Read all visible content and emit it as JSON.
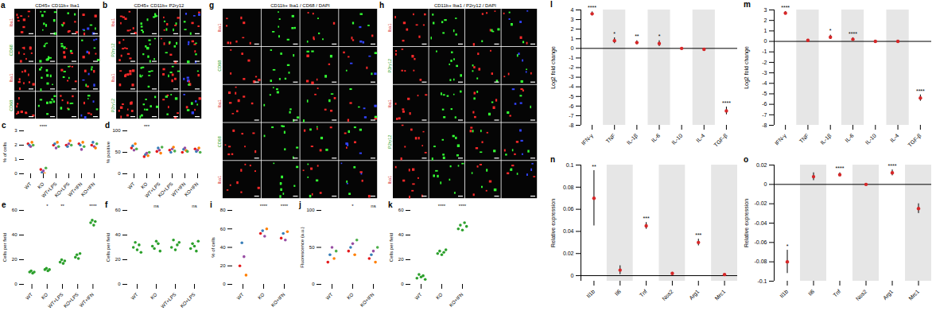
{
  "images": [
    {
      "letter": "a",
      "title": "CD45+ CD11b+ Iba1",
      "row_labels": [
        "Iba1",
        "CD68",
        "Iba1",
        "CD68"
      ]
    },
    {
      "letter": "b",
      "title": "CD45+ CD11b+ P2ry12",
      "row_labels": [
        "Iba1",
        "P2ry12",
        "Iba1",
        "P2ry12"
      ]
    },
    {
      "letter": "g",
      "title": "CD11b+ Iba1 / CD68 / DAPI",
      "row_labels": [
        "Iba1",
        "CD68",
        "Iba1",
        "CD68",
        "Iba1"
      ]
    },
    {
      "letter": "h",
      "title": "CD11b+ Iba1 / P2ry12 / DAPI",
      "row_labels": [
        "Iba1",
        "P2ry12",
        "Iba1",
        "P2ry12",
        "Iba1"
      ]
    }
  ],
  "chart_data": [
    {
      "type": "scatter",
      "letter": "c",
      "y_label": "% of cells",
      "categories": [
        "WT",
        "KO",
        "WT+LPS",
        "KO+LPS",
        "WT+IFN",
        "KO+IFN"
      ],
      "values": [
        [
          2.1,
          2.0,
          1.9,
          2.2,
          2.0
        ],
        [
          0.3,
          0.1,
          0.2,
          0.0,
          0.4
        ],
        [
          2.0,
          2.1,
          1.8,
          2.2,
          1.9
        ],
        [
          2.0,
          1.9,
          2.1,
          2.3,
          2.0
        ],
        [
          2.1,
          2.0,
          1.7,
          2.2,
          1.9
        ],
        [
          2.0,
          2.2,
          1.9,
          1.8,
          2.1
        ]
      ],
      "colors": [
        "#e41a1c",
        "#377eb8",
        "#984ea3",
        "#ff7f00",
        "#4daf4a"
      ],
      "significance": [
        "",
        "****",
        "",
        "",
        "",
        ""
      ],
      "ylim": [
        0,
        3
      ],
      "yticks": [
        0,
        1,
        2,
        3
      ]
    },
    {
      "type": "scatter",
      "letter": "d",
      "y_label": "% positive",
      "categories": [
        "WT",
        "KO",
        "WT+LPS",
        "KO+LPS",
        "WT+IFN",
        "KO+IFN"
      ],
      "values": [
        [
          60,
          65,
          55,
          70,
          58
        ],
        [
          40,
          45,
          48,
          42,
          50
        ],
        [
          52,
          60,
          55,
          48,
          62
        ],
        [
          55,
          50,
          58,
          62,
          53
        ],
        [
          50,
          57,
          60,
          54,
          52
        ],
        [
          58,
          52,
          55,
          60,
          50
        ]
      ],
      "colors": [
        "#e41a1c",
        "#377eb8",
        "#984ea3",
        "#ff7f00",
        "#4daf4a"
      ],
      "significance": [
        "",
        "***",
        "",
        "",
        "",
        ""
      ],
      "ylim": [
        0,
        100
      ],
      "yticks": [
        0,
        50,
        100
      ]
    },
    {
      "type": "scatter",
      "letter": "e",
      "y_label": "Cells per field",
      "categories": [
        "WT",
        "KO",
        "WT+LPS",
        "KO+LPS",
        "WT+IFN"
      ],
      "values": [
        [
          10,
          11,
          9,
          10
        ],
        [
          12,
          13,
          11,
          12
        ],
        [
          18,
          20,
          17,
          19
        ],
        [
          22,
          24,
          21,
          25
        ],
        [
          50,
          52,
          48,
          51
        ]
      ],
      "color": "#2ca02c",
      "significance": [
        "",
        "*",
        "**",
        "",
        "****"
      ],
      "ylim": [
        0,
        60
      ],
      "yticks": [
        0,
        20,
        40,
        60
      ]
    },
    {
      "type": "scatter",
      "letter": "f",
      "y_label": "Cells per field",
      "categories": [
        "WT",
        "KO",
        "WT+LPS",
        "KO+LPS"
      ],
      "values": [
        [
          30,
          34,
          28,
          32,
          26
        ],
        [
          31,
          29,
          35,
          33,
          27
        ],
        [
          30,
          36,
          28,
          32,
          34
        ],
        [
          29,
          33,
          31,
          27,
          35
        ]
      ],
      "color": "#2ca02c",
      "significance": [
        "",
        "ns",
        "",
        "ns"
      ],
      "ylim": [
        0,
        60
      ],
      "yticks": [
        0,
        20,
        40,
        60
      ]
    },
    {
      "type": "scatter",
      "letter": "i",
      "y_label": "% of cells",
      "categories": [
        "WT",
        "KO",
        "KO+IFN"
      ],
      "values": [
        [
          20,
          45,
          30,
          10
        ],
        [
          55,
          58,
          52,
          60
        ],
        [
          50,
          55,
          48,
          57
        ]
      ],
      "colors": [
        "#e41a1c",
        "#377eb8",
        "#984ea3",
        "#ff7f00",
        "#4daf4a"
      ],
      "significance": [
        "",
        "****",
        "****"
      ],
      "ylim": [
        0,
        80
      ],
      "yticks": [
        0,
        20,
        40,
        60,
        80
      ]
    },
    {
      "type": "scatter",
      "letter": "j",
      "y_label": "Fluorescence (a.u.)",
      "categories": [
        "WT",
        "KO",
        "KO+IFN"
      ],
      "values": [
        [
          30,
          40,
          50,
          35,
          45
        ],
        [
          45,
          50,
          55,
          40,
          60
        ],
        [
          35,
          40,
          45,
          30,
          50
        ]
      ],
      "colors": [
        "#e41a1c",
        "#377eb8",
        "#984ea3",
        "#ff7f00",
        "#4daf4a"
      ],
      "significance": [
        "",
        "*",
        "ns"
      ],
      "ylim": [
        0,
        100
      ],
      "yticks": [
        0,
        50,
        100
      ]
    },
    {
      "type": "scatter",
      "letter": "k",
      "y_label": "Cells per field",
      "categories": [
        "WT",
        "KO",
        "KO+IFN"
      ],
      "values": [
        [
          5,
          8,
          6,
          7,
          4
        ],
        [
          25,
          27,
          24,
          26,
          28
        ],
        [
          45,
          48,
          44,
          50,
          47
        ]
      ],
      "color": "#2ca02c",
      "significance": [
        "",
        "****",
        "****"
      ],
      "ylim": [
        0,
        60
      ],
      "yticks": [
        0,
        20,
        40,
        60
      ]
    },
    {
      "type": "dot",
      "letter": "l",
      "y_label": "Log2 fold change",
      "categories": [
        "IFN-γ",
        "TNF",
        "IL-1β",
        "IL-6",
        "IL-10",
        "IL-4",
        "TGF-β"
      ],
      "values": [
        3.6,
        0.8,
        0.6,
        0.5,
        0,
        -0.1,
        -6.5
      ],
      "error": [
        0.2,
        0.3,
        0.2,
        0.3,
        0.05,
        0.1,
        0.4
      ],
      "significance": [
        "****",
        "*",
        "**",
        "*",
        "",
        "",
        "****"
      ],
      "baseline": 0,
      "color": "#d62728",
      "ylim": [
        -8,
        4
      ],
      "yticks": [
        -8,
        -7,
        -6,
        -5,
        -4,
        -3,
        -2,
        -1,
        0,
        1,
        2,
        3,
        4
      ]
    },
    {
      "type": "dot",
      "letter": "m",
      "y_label": "Log2 fold change",
      "categories": [
        "IFN-γ",
        "TNF",
        "IL-1β",
        "IL-6",
        "IL-10",
        "IL-4",
        "TGF-β"
      ],
      "values": [
        2.7,
        0.1,
        0.4,
        0.2,
        0,
        0,
        -5.4
      ],
      "error": [
        0.15,
        0.1,
        0.2,
        0.15,
        0.05,
        0.05,
        0.3
      ],
      "significance": [
        "****",
        "",
        "*",
        "****",
        "",
        "",
        "****"
      ],
      "baseline": 0,
      "color": "#d62728",
      "ylim": [
        -8,
        3
      ],
      "yticks": [
        -8,
        -7,
        -6,
        -5,
        -4,
        -3,
        -2,
        -1,
        0,
        1,
        2,
        3
      ]
    },
    {
      "type": "dot",
      "letter": "n",
      "y_label": "Relative expression",
      "categories": [
        "Il1b",
        "Il6",
        "Tnf",
        "Nos2",
        "Arg1",
        "Mrc1"
      ],
      "values": [
        0.07,
        0.005,
        0.045,
        0.002,
        0.03,
        0.001
      ],
      "error": [
        0.025,
        0.004,
        0.003,
        0.001,
        0.003,
        0.0005
      ],
      "significance": [
        "**",
        "",
        "***",
        "",
        "***",
        ""
      ],
      "baseline": 0,
      "color": "#d62728",
      "ylim": [
        -0.005,
        0.1
      ],
      "yticks": [
        0,
        0.02,
        0.04,
        0.06,
        0.08,
        0.1
      ]
    },
    {
      "type": "dot",
      "letter": "o",
      "y_label": "Relative expression",
      "categories": [
        "Il1b",
        "Il6",
        "Tnf",
        "Nos2",
        "Arg1",
        "Mrc1"
      ],
      "values": [
        -0.08,
        0.008,
        0.01,
        0,
        0.012,
        -0.025
      ],
      "error": [
        0.012,
        0.004,
        0.002,
        0.001,
        0.003,
        0.005
      ],
      "significance": [
        "*",
        "",
        "****",
        "",
        "****",
        ""
      ],
      "baseline": 0,
      "color": "#d62728",
      "ylim": [
        -0.1,
        0.02
      ],
      "yticks": [
        -0.1,
        -0.08,
        -0.06,
        -0.04,
        -0.02,
        0,
        0.02
      ]
    }
  ]
}
